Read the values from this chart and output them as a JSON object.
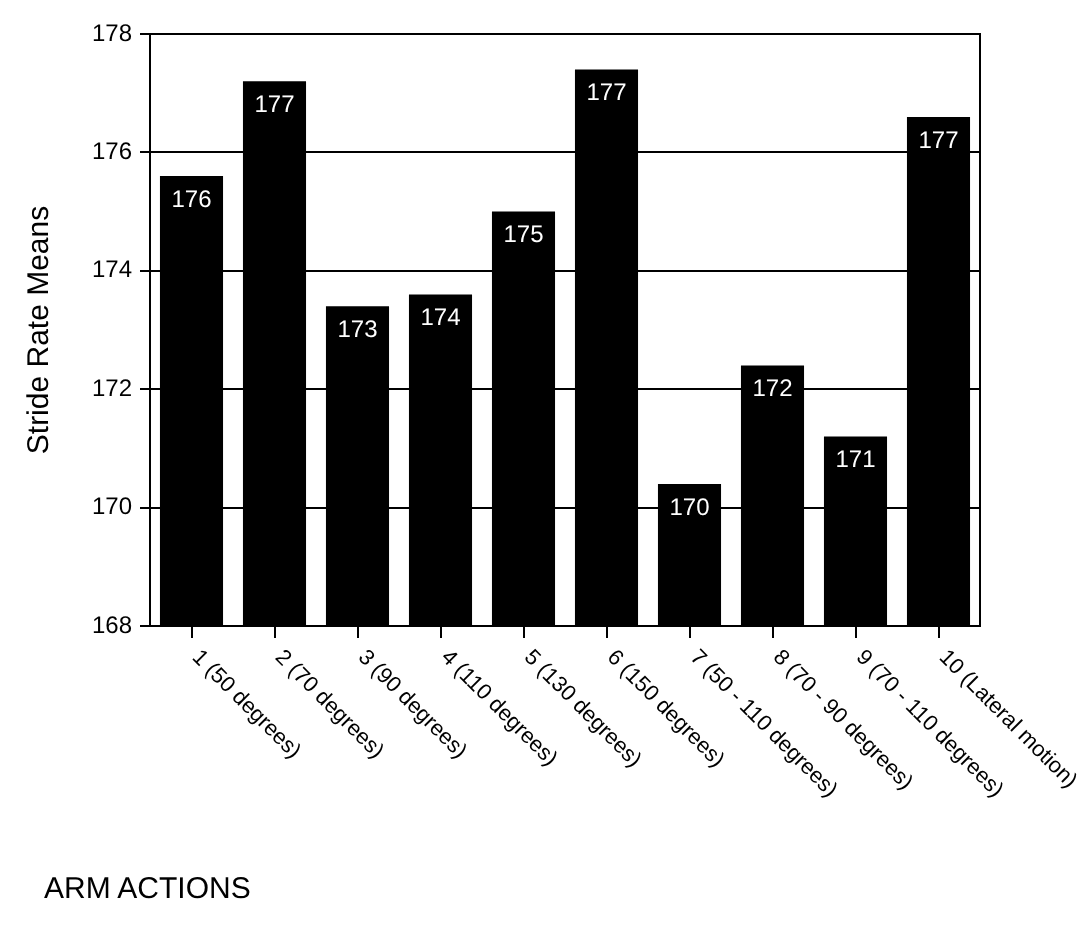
{
  "chart_data": {
    "type": "bar",
    "xlabel": "ARM ACTIONS",
    "ylabel": "Stride Rate Means",
    "categories": [
      "1 (50 degrees)",
      "2 (70 degrees)",
      "3 (90 degrees)",
      "4 (110 degrees)",
      "5 (130 degrees)",
      "6 (150 degrees)",
      "7 (50 - 110 degrees)",
      "8 (70 - 90 degrees)",
      "9 (70 - 110 degrees)",
      "10 (Lateral motion)"
    ],
    "values": [
      175.6,
      177.2,
      173.4,
      173.6,
      175.0,
      177.4,
      170.4,
      172.4,
      171.2,
      176.6
    ],
    "value_labels": [
      "176",
      "177",
      "173",
      "174",
      "175",
      "177",
      "170",
      "172",
      "171",
      "177"
    ],
    "color": "#000000",
    "ylim": [
      168,
      178
    ],
    "yticks": [
      168,
      170,
      172,
      174,
      176,
      178
    ],
    "grid": "y",
    "legend": false
  }
}
